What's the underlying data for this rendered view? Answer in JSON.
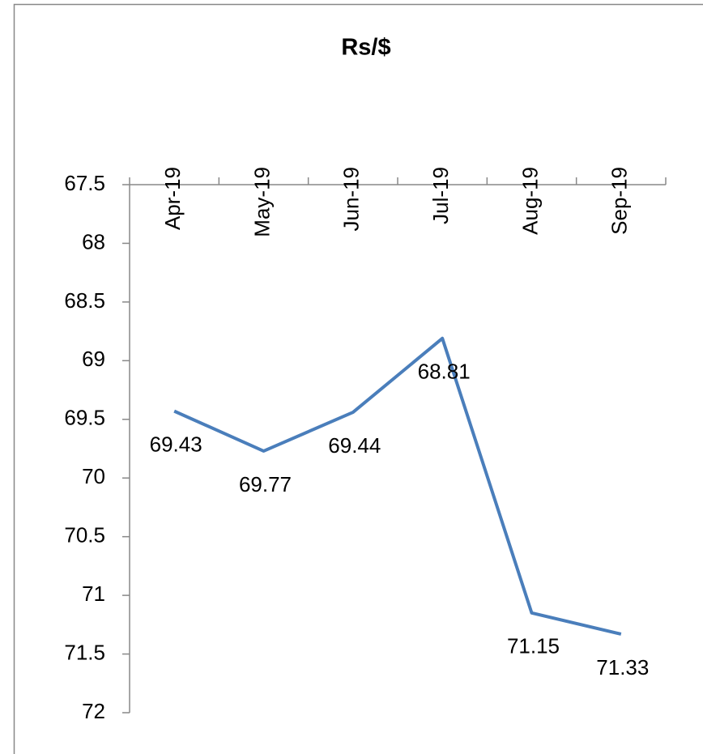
{
  "chart_data": {
    "type": "line",
    "title": "Rs/$",
    "categories": [
      "Apr-19",
      "May-19",
      "Jun-19",
      "Jul-19",
      "Aug-19",
      "Sep-19"
    ],
    "series": [
      {
        "name": "Rs/$",
        "color": "#4a7ebb",
        "values": [
          69.43,
          69.77,
          69.44,
          68.81,
          71.15,
          71.33
        ]
      }
    ],
    "ylim": [
      67.5,
      72
    ],
    "yticks": [
      67.5,
      68,
      68.5,
      69,
      69.5,
      70,
      70.5,
      71,
      71.5,
      72
    ],
    "y_reversed": true,
    "grid": false,
    "data_labels": true
  }
}
